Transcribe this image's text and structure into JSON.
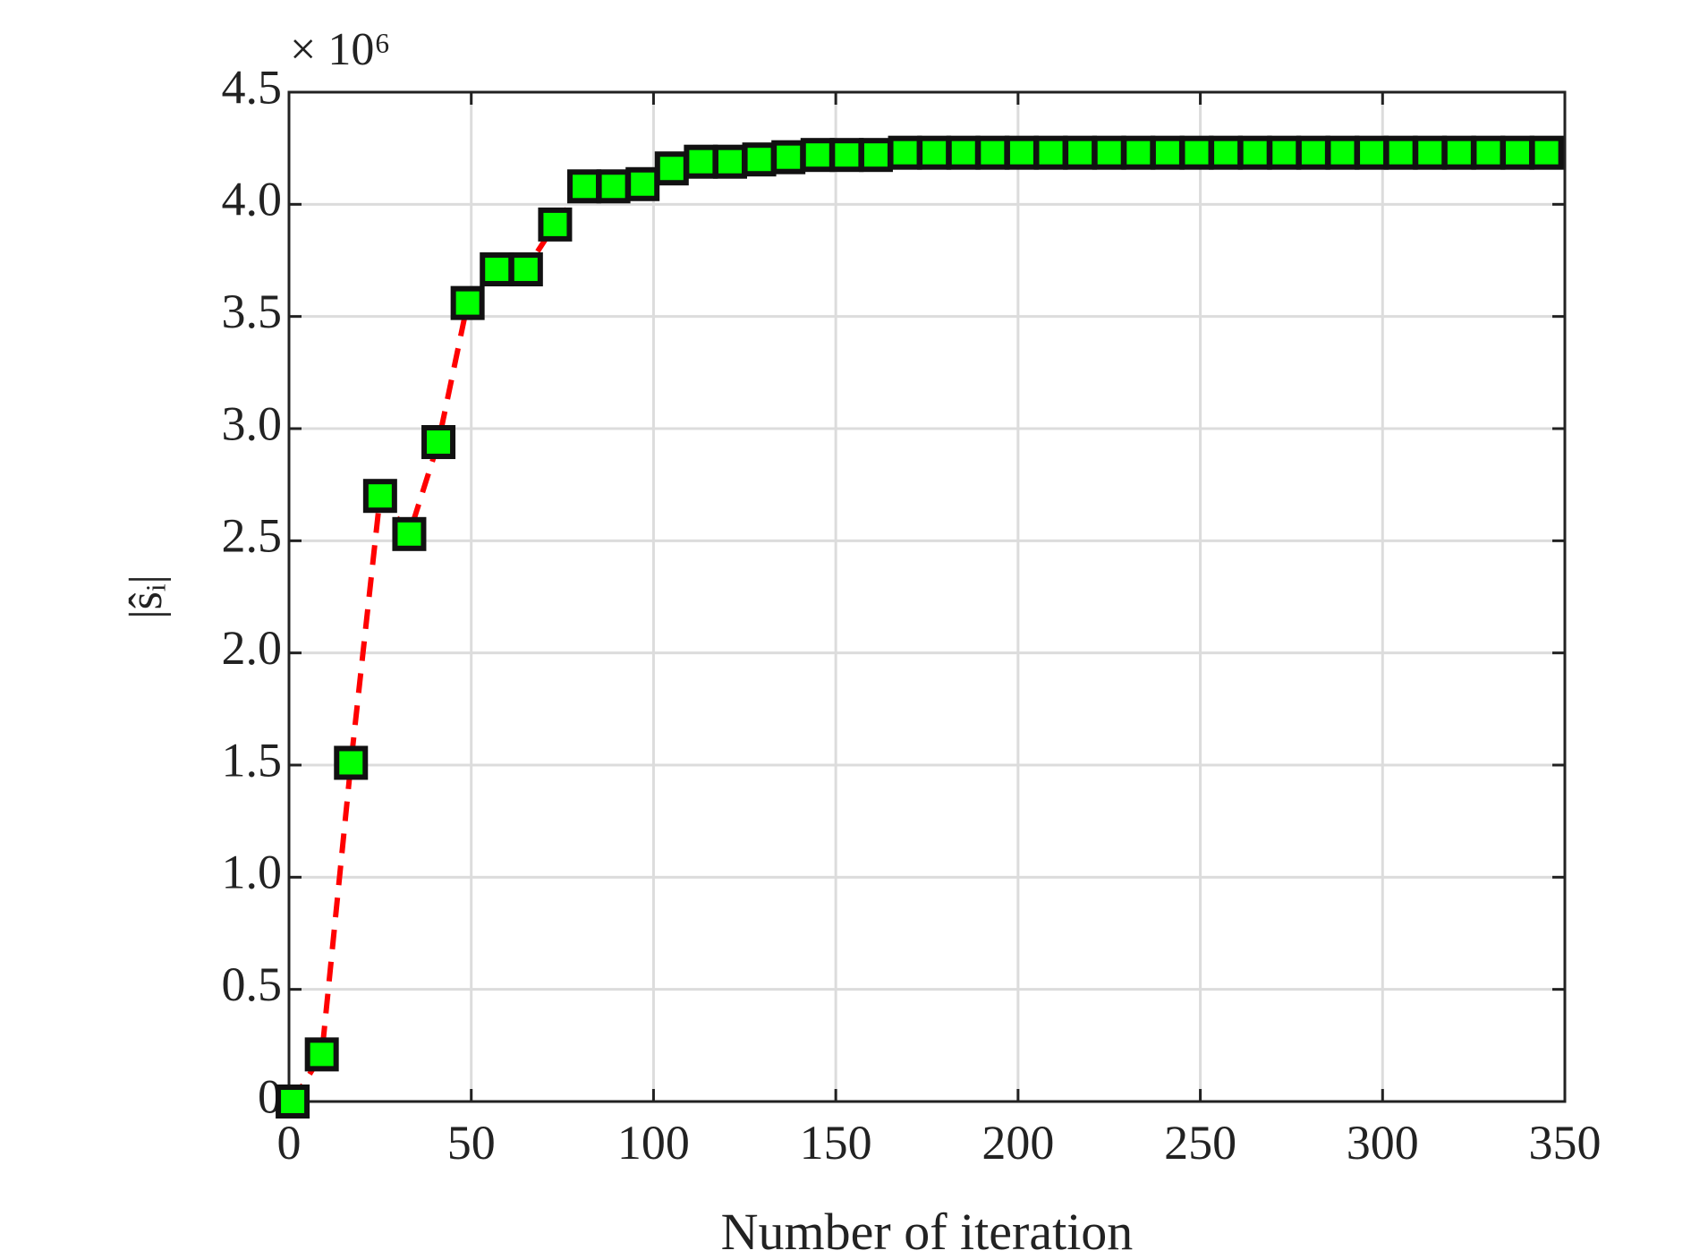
{
  "chart_data": {
    "type": "line",
    "x_label": "Number of iteration",
    "y_label": "|ŝᵢ|",
    "y_multiplier": "× 10⁶",
    "x": [
      1,
      9,
      17,
      25,
      33,
      41,
      49,
      57,
      65,
      73,
      81,
      89,
      97,
      105,
      113,
      121,
      129,
      137,
      145,
      153,
      161,
      169,
      177,
      185,
      193,
      201,
      209,
      217,
      225,
      233,
      241,
      249,
      257,
      265,
      273,
      281,
      289,
      297,
      305,
      313,
      321,
      329,
      337,
      345
    ],
    "series": [
      {
        "color": "#ff0000",
        "marker_color": "#00ff00",
        "values": [
          0,
          0.21,
          1.51,
          2.7,
          2.53,
          2.94,
          3.56,
          3.71,
          3.71,
          3.91,
          4.08,
          4.08,
          4.09,
          4.16,
          4.19,
          4.19,
          4.2,
          4.21,
          4.22,
          4.22,
          4.22,
          4.23,
          4.23,
          4.23,
          4.23,
          4.23,
          4.23,
          4.23,
          4.23,
          4.23,
          4.23,
          4.23,
          4.23,
          4.23,
          4.23,
          4.23,
          4.23,
          4.23,
          4.23,
          4.23,
          4.23,
          4.23,
          4.23,
          4.23
        ]
      }
    ],
    "xlim": [
      0,
      350
    ],
    "xticks": [
      0,
      50,
      100,
      150,
      200,
      250,
      300,
      350
    ],
    "ylim": [
      0,
      4.5
    ],
    "yticks": [
      0,
      0.5,
      {
        "value": 1,
        "label": "1.0"
      },
      1.5,
      {
        "value": 2,
        "label": "2.0"
      },
      2.5,
      {
        "value": 3,
        "label": "3.0"
      },
      3.5,
      {
        "value": 4,
        "label": "4.0"
      },
      4.5
    ],
    "grid": true
  }
}
